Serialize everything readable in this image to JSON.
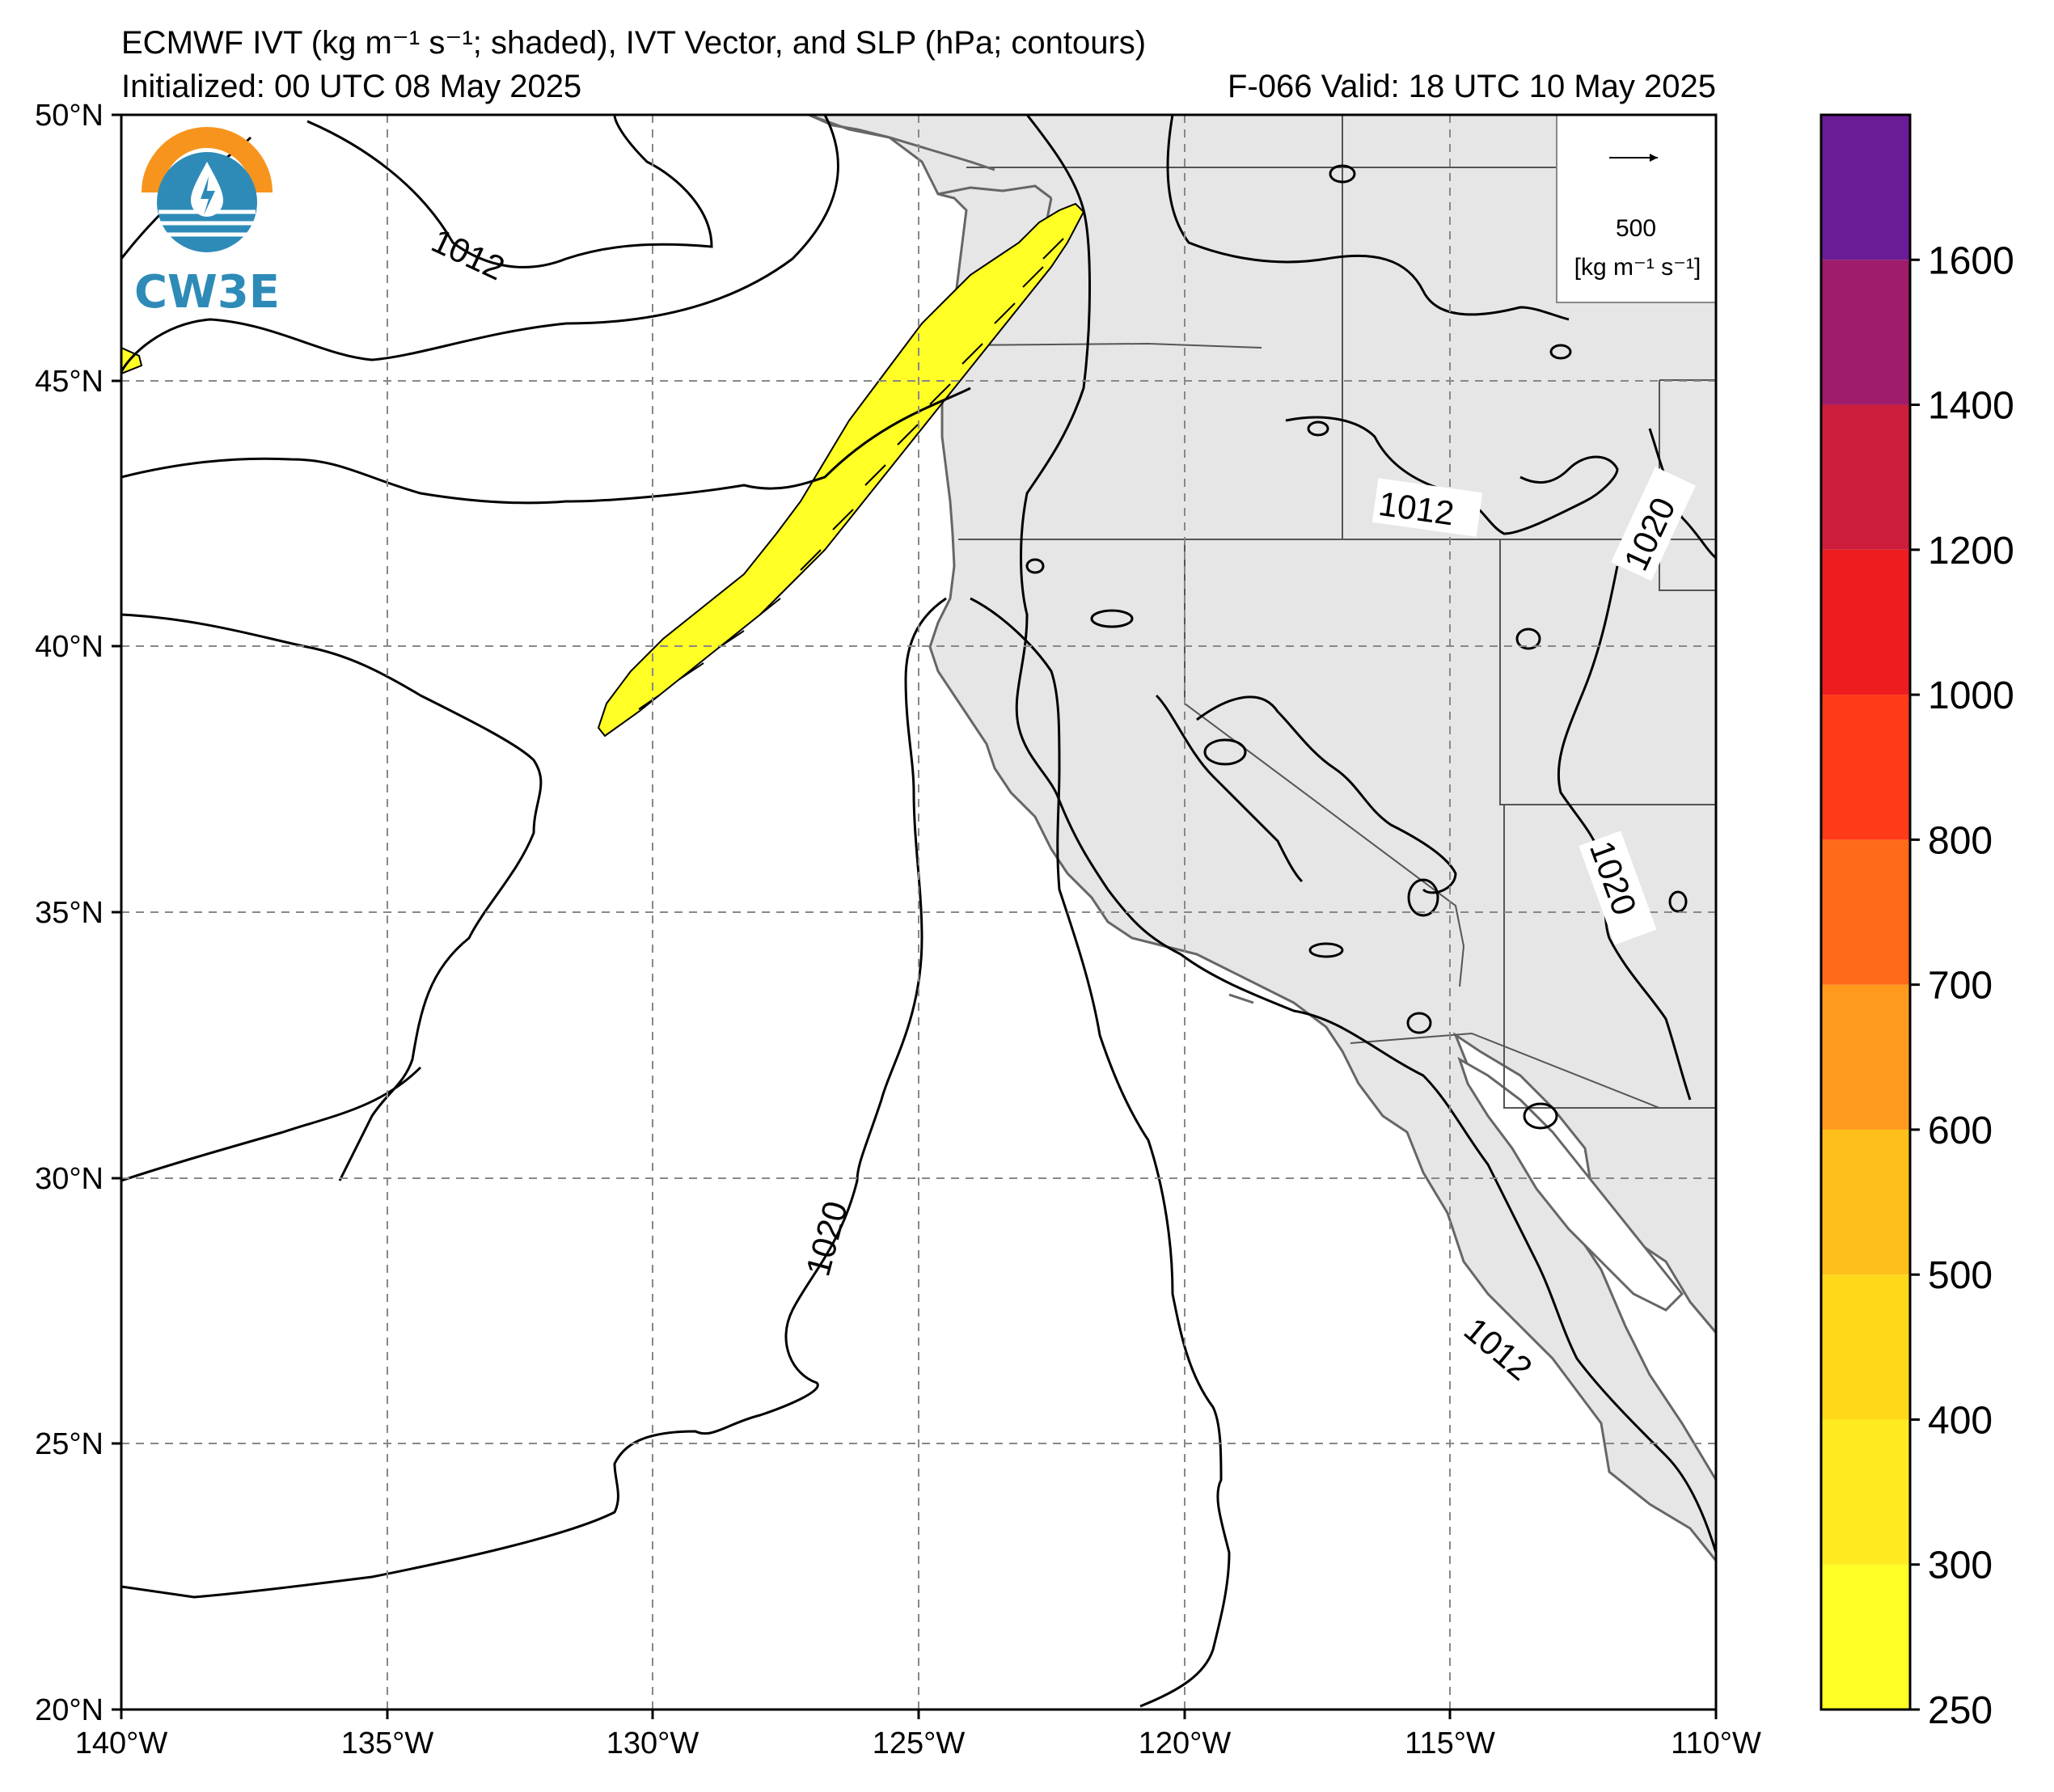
{
  "header": {
    "title": "ECMWF IVT (kg m⁻¹ s⁻¹; shaded), IVT Vector, and SLP (hPa; contours)",
    "initialized": "Initialized: 00 UTC 08 May 2025",
    "valid": "F-066  Valid: 18 UTC 10 May 2025"
  },
  "logo": {
    "text": "CW3E"
  },
  "map": {
    "lon_range": [
      -140,
      -110
    ],
    "lat_range": [
      20,
      50
    ],
    "lon_ticks": [
      "140°W",
      "135°W",
      "130°W",
      "125°W",
      "120°W",
      "115°W",
      "110°W"
    ],
    "lat_ticks": [
      "50°N",
      "45°N",
      "40°N",
      "35°N",
      "30°N",
      "25°N",
      "20°N"
    ],
    "gridlines": true,
    "contour_labels": [
      "1012",
      "1012",
      "1020",
      "1020",
      "1020",
      "1012"
    ],
    "land_color": "#e6e6e6",
    "ivt_shade_color": "#ffff26"
  },
  "vector_legend": {
    "value": "500",
    "units": "[kg m⁻¹ s⁻¹]"
  },
  "colorbar": {
    "levels": [
      "250",
      "300",
      "400",
      "500",
      "600",
      "700",
      "800",
      "1000",
      "1200",
      "1400",
      "1600"
    ],
    "colors": [
      "#ffff26",
      "#ffeb1f",
      "#ffd81a",
      "#ffbf1a",
      "#ff9a1f",
      "#ff6a1a",
      "#ff3a18",
      "#ee1c1f",
      "#cc1e3c",
      "#9e1c6a",
      "#6a1c96"
    ]
  }
}
